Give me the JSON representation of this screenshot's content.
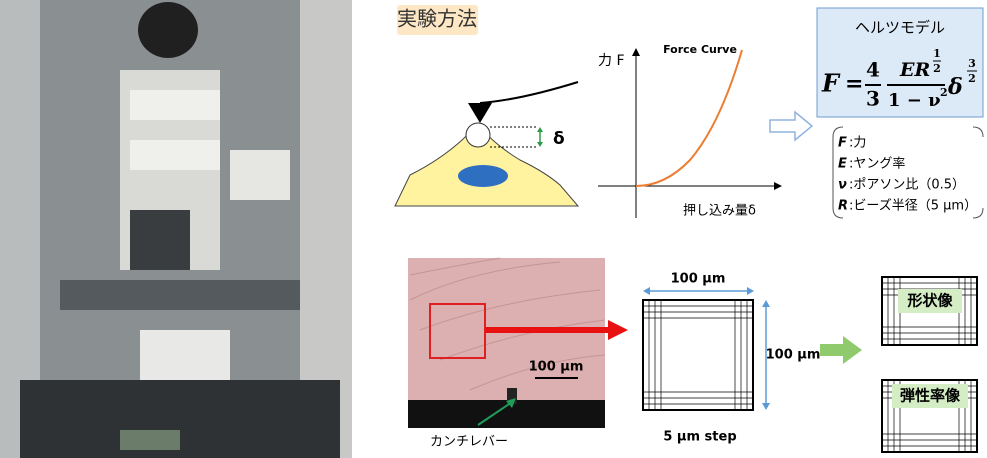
{
  "title": "実験方法",
  "force_curve": {
    "title": "Force Curve",
    "y_label": "力 F",
    "x_label": "押し込み量δ",
    "indent_symbol": "δ"
  },
  "hertz_model": {
    "title": "ヘルツモデル",
    "formula": {
      "lhs": "F",
      "eq": "=",
      "frac1_num": "4",
      "frac1_den": "3",
      "frac2_num": "ER",
      "frac2_num_exp_num": "1",
      "frac2_num_exp_den": "2",
      "frac2_den": "1 − ν",
      "frac2_den_exp": "2",
      "delta": "δ",
      "delta_exp_num": "3",
      "delta_exp_den": "2"
    },
    "legend": [
      {
        "symbol": "F",
        "text": ":力"
      },
      {
        "symbol": "E",
        "text": ":ヤング率"
      },
      {
        "symbol": "ν",
        "text": ":ポアソン比（0.5）"
      },
      {
        "symbol": "R",
        "text": ":ビーズ半径（5 µm）"
      }
    ]
  },
  "micrograph": {
    "scale_bar": "100 µm",
    "cantilever_label": "カンチレバー"
  },
  "scan_grid": {
    "width_label": "100 µm",
    "height_label": "100 µm",
    "step_label": "5 µm step"
  },
  "outputs": [
    "形状像",
    "弾性率像"
  ]
}
